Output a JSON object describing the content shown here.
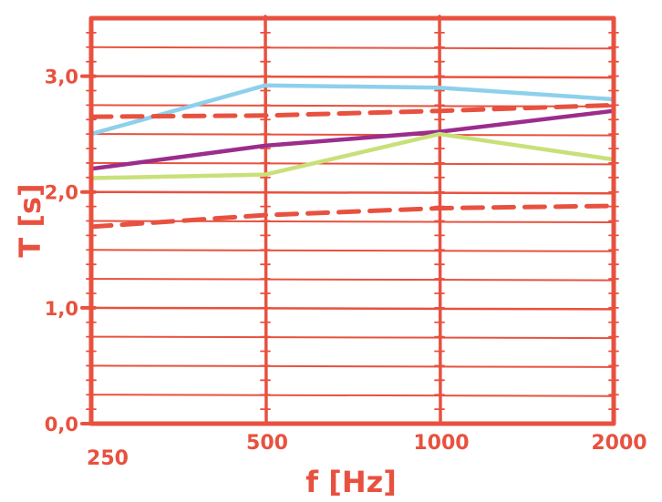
{
  "chart_data": {
    "type": "line",
    "x": [
      250,
      500,
      1000,
      2000
    ],
    "x_scale": "log",
    "xlabel": "f [Hz]",
    "ylabel": "T [s]",
    "ylim": [
      0,
      3.5
    ],
    "y_ticks": [
      {
        "value": 0,
        "label": "0,0"
      },
      {
        "value": 1,
        "label": "1,0"
      },
      {
        "value": 2,
        "label": "2,0"
      },
      {
        "value": 3,
        "label": "3,0"
      }
    ],
    "x_ticks": [
      {
        "value": 250,
        "label": "250"
      },
      {
        "value": 500,
        "label": "500"
      },
      {
        "value": 1000,
        "label": "1000"
      },
      {
        "value": 2000,
        "label": "2000"
      }
    ],
    "grid": true,
    "series": [
      {
        "color": "#8ed0ec",
        "dashed": false,
        "values": [
          2.5,
          2.92,
          2.9,
          2.8
        ]
      },
      {
        "color": "#e8513f",
        "dashed": true,
        "values": [
          2.65,
          2.66,
          2.7,
          2.75
        ]
      },
      {
        "color": "#9b2d8c",
        "dashed": false,
        "values": [
          2.2,
          2.4,
          2.52,
          2.7
        ]
      },
      {
        "color": "#c9e07a",
        "dashed": false,
        "values": [
          2.12,
          2.15,
          2.5,
          2.28
        ]
      },
      {
        "color": "#e8513f",
        "dashed": true,
        "values": [
          1.7,
          1.8,
          1.86,
          1.88
        ]
      }
    ],
    "colors": {
      "frame": "#e8513f",
      "background": "#ffffff"
    }
  }
}
